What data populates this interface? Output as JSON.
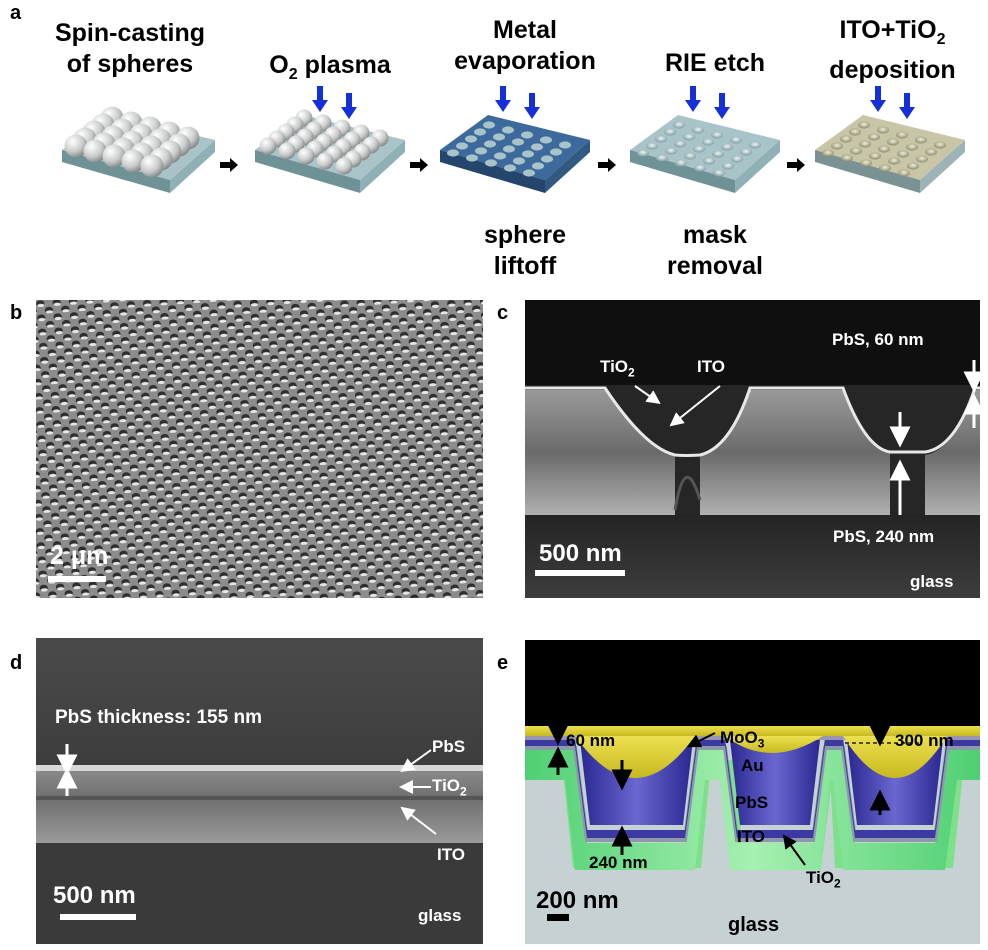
{
  "panels": {
    "a": {
      "letter": "a",
      "steps": [
        {
          "title_line1": "Spin-casting",
          "title_line2": "of spheres"
        },
        {
          "title_line1": "O",
          "title_sub": "2",
          "title_rest": " plasma"
        },
        {
          "title_line1": "Metal",
          "title_line2": "evaporation"
        },
        {
          "title_line1": "RIE etch"
        },
        {
          "title_line1": "ITO+TiO",
          "title_sub": "2",
          "title_line2": "deposition"
        }
      ],
      "bottom_labels": [
        {
          "line1": "sphere",
          "line2": "liftoff"
        },
        {
          "line1": "mask",
          "line2": "removal"
        }
      ]
    },
    "b": {
      "letter": "b",
      "scale": "2 μm"
    },
    "c": {
      "letter": "c",
      "tio2": "TiO",
      "tio2_sub": "2",
      "ito": "ITO",
      "pbs_top": "PbS, 60 nm",
      "pbs_bottom": "PbS, 240 nm",
      "scale": "500 nm",
      "glass": "glass"
    },
    "d": {
      "letter": "d",
      "thickness": "PbS thickness: 155 nm",
      "pbs": "PbS",
      "tio2": "TiO",
      "tio2_sub": "2",
      "ito": "ITO",
      "scale": "500 nm",
      "glass": "glass"
    },
    "e": {
      "letter": "e",
      "t60": "60 nm",
      "moo3": "MoO",
      "moo3_sub": "3",
      "t300": "300 nm",
      "au": "Au",
      "pbs": "PbS",
      "ito": "ITO",
      "t240": "240 nm",
      "tio2": "TiO",
      "tio2_sub": "2",
      "scale": "200 nm",
      "glass": "glass"
    }
  },
  "colors": {
    "arrow_blue": "#1530d8",
    "substrate": "#a9c4c8",
    "metal_blue": "#3d6a9c",
    "ito_tint": "#c8c6a6",
    "e_gold": "#d9cc2a",
    "e_blue": "#3c3aa2",
    "e_green": "#7de08a",
    "e_glass": "#c5d1d3"
  }
}
